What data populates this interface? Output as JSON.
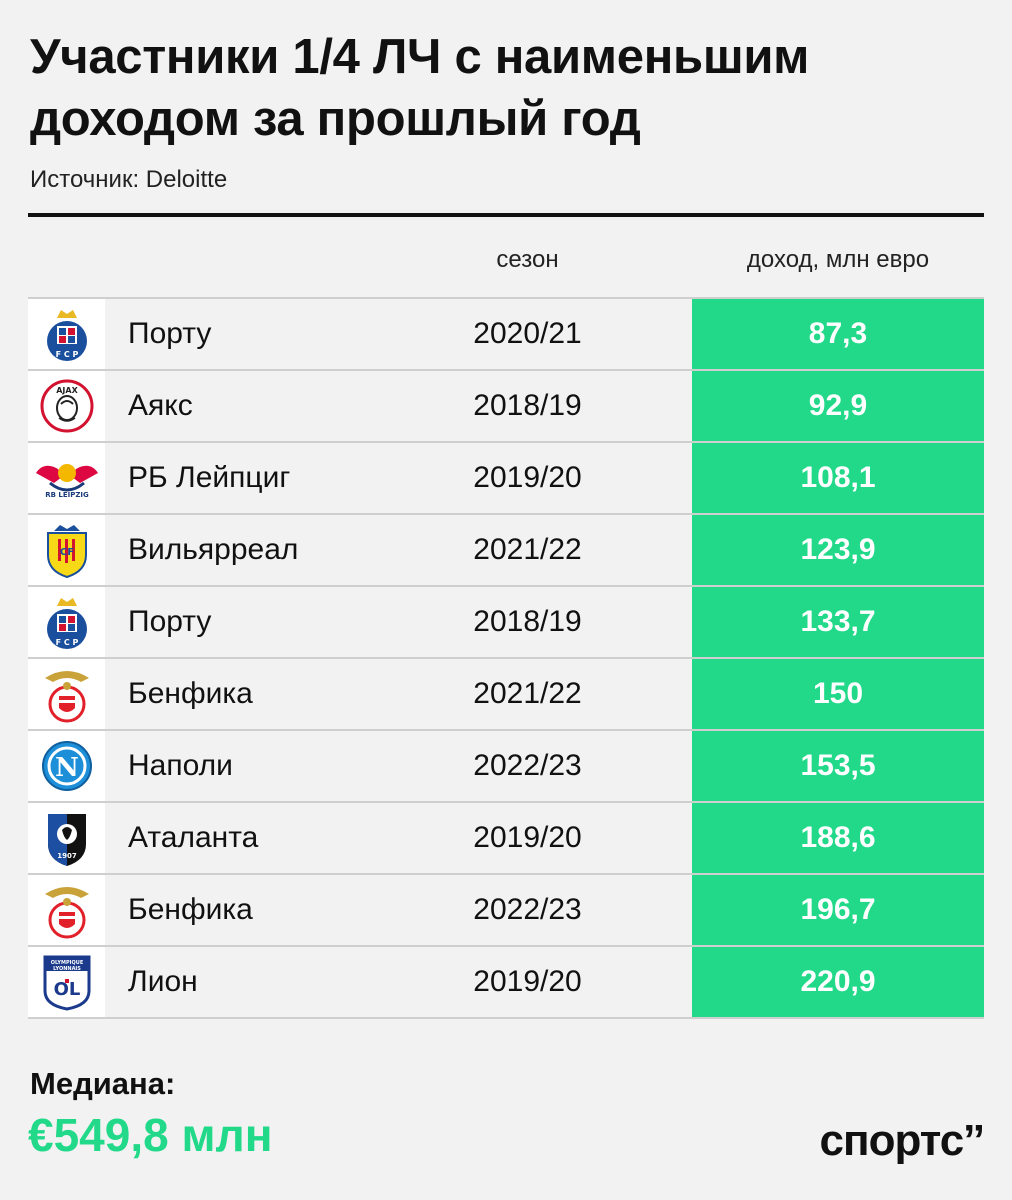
{
  "header": {
    "title": "Участники 1/4 ЛЧ с наименьшим доходом за прошлый год",
    "source": "Источник: Deloitte"
  },
  "columns": {
    "season": "сезон",
    "income": "доход, млн евро"
  },
  "colors": {
    "accent": "#22d98a",
    "median": "#22d98a",
    "porto_blue": "#1a4f9e",
    "ajax_red": "#d2122e",
    "leipzig_red": "#dd0741",
    "villarreal_yellow": "#f7d917",
    "benfica_red": "#e2202a",
    "napoli_blue": "#1d8fd8",
    "atalanta_blue": "#1c4ea1",
    "lyon_blue": "#1b3a8c"
  },
  "chart_data": {
    "type": "table",
    "title": "Участники 1/4 ЛЧ с наименьшим доходом за прошлый год",
    "columns": [
      "",
      "сезон",
      "доход, млн евро"
    ],
    "rows": [
      {
        "club": "Порту",
        "season": "2020/21",
        "income": "87,3",
        "logo": "porto-logo-icon"
      },
      {
        "club": "Аякс",
        "season": "2018/19",
        "income": "92,9",
        "logo": "ajax-logo-icon"
      },
      {
        "club": "РБ Лейпциг",
        "season": "2019/20",
        "income": "108,1",
        "logo": "leipzig-logo-icon"
      },
      {
        "club": "Вильярреал",
        "season": "2021/22",
        "income": "123,9",
        "logo": "villarreal-logo-icon"
      },
      {
        "club": "Порту",
        "season": "2018/19",
        "income": "133,7",
        "logo": "porto-logo-icon"
      },
      {
        "club": "Бенфика",
        "season": "2021/22",
        "income": "150",
        "logo": "benfica-logo-icon"
      },
      {
        "club": "Наполи",
        "season": "2022/23",
        "income": "153,5",
        "logo": "napoli-logo-icon"
      },
      {
        "club": "Аталанта",
        "season": "2019/20",
        "income": "188,6",
        "logo": "atalanta-logo-icon"
      },
      {
        "club": "Бенфика",
        "season": "2022/23",
        "income": "196,7",
        "logo": "benfica-logo-icon"
      },
      {
        "club": "Лион",
        "season": "2019/20",
        "income": "220,9",
        "logo": "lyon-logo-icon"
      }
    ]
  },
  "footer": {
    "median_label": "Медиана:",
    "median_value": "€549,8 млн",
    "brand": "спортс’’"
  }
}
